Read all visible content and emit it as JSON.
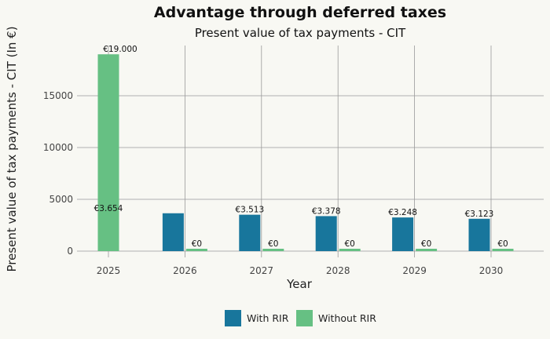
{
  "chart_data": {
    "type": "bar",
    "title": "Advantage through deferred taxes",
    "subtitle": "Present value of tax payments - CIT",
    "xlabel": "Year",
    "ylabel": "Present value of tax payments - CIT (In €)",
    "categories": [
      "2025",
      "2026",
      "2027",
      "2028",
      "2029",
      "2030"
    ],
    "series": [
      {
        "name": "With RIR",
        "color": "#18769c",
        "values": [
          0,
          3654,
          3513,
          3378,
          3248,
          3123
        ],
        "labels": [
          "",
          "€3.654",
          "€3.513",
          "€3.378",
          "€3.248",
          "€3.123"
        ]
      },
      {
        "name": "Without RIR",
        "color": "#66c083",
        "values": [
          19000,
          0,
          0,
          0,
          0,
          0
        ],
        "labels": [
          "€19.000",
          "€0",
          "€0",
          "€0",
          "€0",
          "€0"
        ]
      }
    ],
    "yticks": [
      0,
      5000,
      10000,
      15000
    ],
    "ytick_labels": [
      "0",
      "5000",
      "10000",
      "15000"
    ],
    "ylim": [
      0,
      19800
    ],
    "grid": true,
    "legend_position": "bottom-center"
  }
}
